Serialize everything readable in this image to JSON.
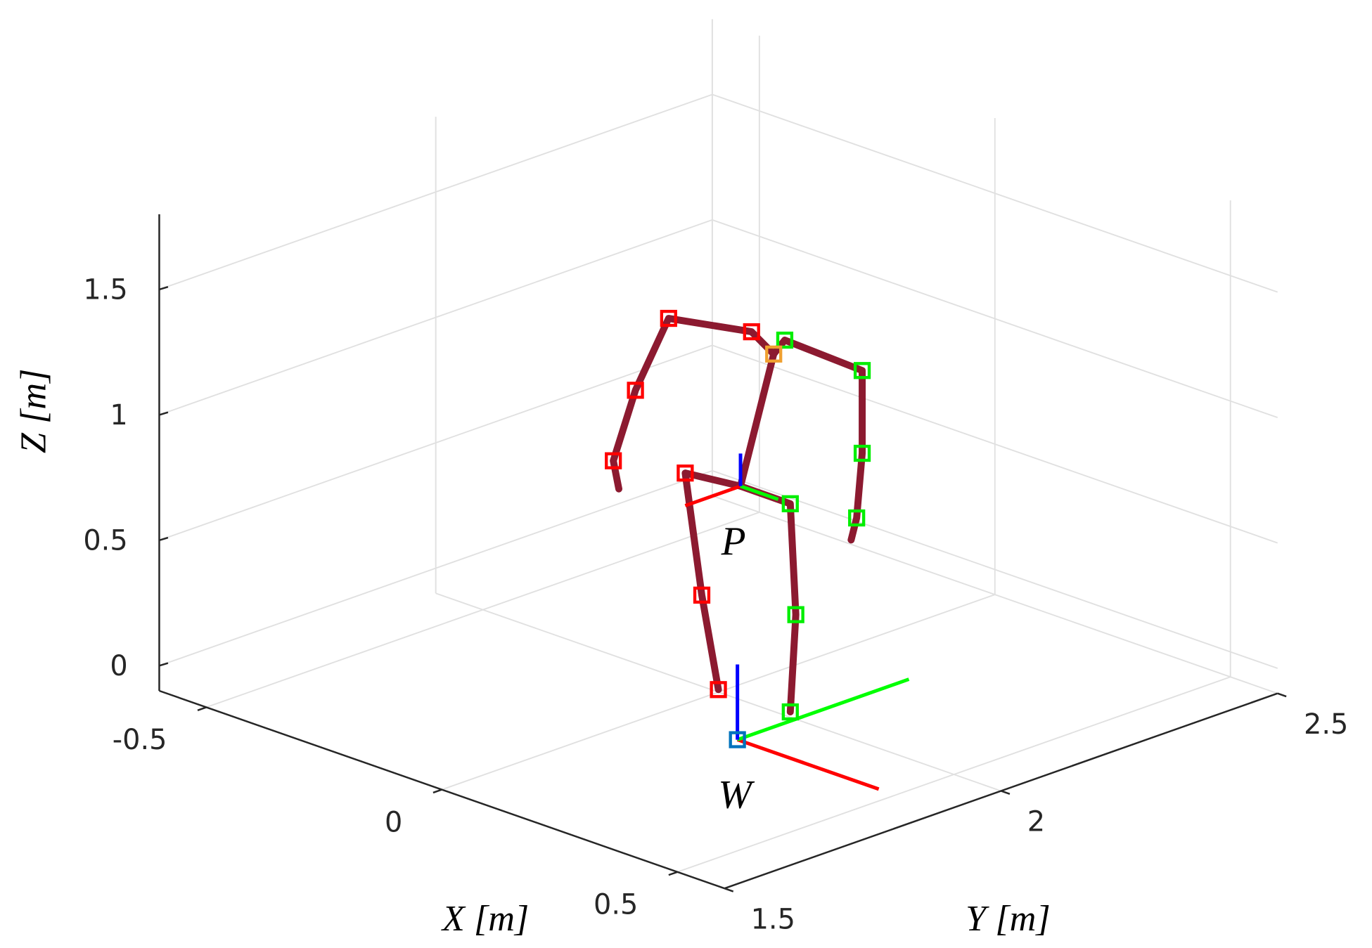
{
  "chart_data": {
    "type": "skeleton3d",
    "xlabel": "X [m]",
    "ylabel": "Y [m]",
    "zlabel": "Z [m]",
    "xlim": [
      -0.6,
      0.6
    ],
    "ylim": [
      1.5,
      2.5
    ],
    "zlim": [
      -0.1,
      1.8
    ],
    "xticks": [
      -0.5,
      0,
      0.5
    ],
    "yticks": [
      1.5,
      2,
      2.5
    ],
    "zticks": [
      0,
      0.5,
      1,
      1.5
    ],
    "grid": true,
    "bone_color": "#8c1a30",
    "bones": [
      {
        "x": [
          0,
          0,
          0,
          0,
          0,
          0,
          0,
          0,
          0,
          0,
          0
        ],
        "y": [
          1.82,
          1.81,
          1.85,
          1.91,
          2.06,
          2.1,
          2.12,
          2.26,
          2.26,
          2.25,
          2.24
        ],
        "z": [
          0.85,
          0.97,
          1.22,
          1.46,
          1.29,
          1.17,
          1.21,
          0.98,
          0.65,
          0.4,
          0.32
        ]
      },
      {
        "x": [
          0,
          0
        ],
        "y": [
          2.1,
          2.04
        ],
        "z": [
          1.17,
          0.69
        ]
      },
      {
        "x": [
          0,
          0,
          0,
          0,
          0,
          0,
          0
        ],
        "y": [
          2.0,
          1.97,
          1.94,
          2.04,
          2.13,
          2.14,
          2.13
        ],
        "z": [
          -0.09,
          0.31,
          0.82,
          0.69,
          0.55,
          0.1,
          -0.28
        ]
      }
    ],
    "markers": [
      {
        "color": "#ff0000",
        "x": [
          0,
          0,
          0,
          0,
          0,
          0,
          0
        ],
        "y": [
          1.91,
          2.06,
          1.85,
          1.81,
          1.94,
          1.97,
          2.0
        ],
        "z": [
          1.46,
          1.29,
          1.22,
          0.97,
          0.82,
          0.31,
          -0.09
        ]
      },
      {
        "color": "#00ee00",
        "x": [
          0,
          0,
          0,
          0,
          0,
          0,
          0
        ],
        "y": [
          2.12,
          2.26,
          2.26,
          2.25,
          2.13,
          2.14,
          2.13
        ],
        "z": [
          1.21,
          0.98,
          0.65,
          0.4,
          0.55,
          0.1,
          -0.28
        ]
      },
      {
        "color": "#f0a030",
        "x": [
          0
        ],
        "y": [
          2.1
        ],
        "z": [
          1.17
        ]
      },
      {
        "color": "#0072bd",
        "x": [
          0.24
        ],
        "y": [
          1.83
        ],
        "z": [
          0
        ]
      }
    ],
    "frame_axis_colors": [
      "#ff0000",
      "#00ff00",
      "#0000ff"
    ],
    "frames": [
      {
        "label": "P",
        "origin": [
          0,
          2.04,
          0.69
        ],
        "axes": [
          [
            0,
            1.94,
            0.69
          ],
          [
            0.08,
            2.04,
            0.69
          ],
          [
            0,
            2.04,
            0.82
          ]
        ]
      },
      {
        "label": "W",
        "origin": [
          0.24,
          1.83,
          0
        ],
        "axes": [
          [
            0.54,
            1.83,
            0
          ],
          [
            0.24,
            2.14,
            0
          ],
          [
            0.24,
            1.83,
            0.3
          ]
        ]
      }
    ]
  }
}
